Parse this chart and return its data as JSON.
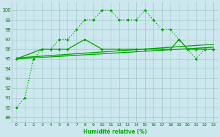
{
  "xlabel": "Humidité relative (%)",
  "background_color": "#cce8ee",
  "grid_color": "#aacccc",
  "line_color": "#00aa00",
  "xlim": [
    -0.5,
    23.5
  ],
  "ylim": [
    88.5,
    100.8
  ],
  "yticks": [
    89,
    90,
    91,
    92,
    93,
    94,
    95,
    96,
    97,
    98,
    99,
    100
  ],
  "xticks": [
    0,
    1,
    2,
    3,
    4,
    5,
    6,
    7,
    8,
    9,
    10,
    11,
    12,
    13,
    14,
    15,
    16,
    17,
    18,
    19,
    20,
    21,
    22,
    23
  ],
  "series": [
    {
      "x": [
        0,
        1,
        2,
        3,
        4,
        5,
        6,
        7,
        8,
        9,
        10,
        11,
        12,
        13,
        14,
        15,
        16,
        17,
        18,
        19,
        20,
        21,
        22,
        23
      ],
      "y": [
        90,
        91,
        95,
        96,
        96,
        97,
        97,
        98,
        99,
        99,
        100,
        100,
        99,
        99,
        99,
        100,
        99,
        98,
        98,
        97,
        96,
        95,
        96,
        96
      ],
      "linestyle": "dotted",
      "marker": "D",
      "markersize": 2.0,
      "linewidth": 1.0
    },
    {
      "x": [
        0,
        23
      ],
      "y": [
        95.0,
        96.2
      ],
      "linestyle": "solid",
      "marker": null,
      "markersize": 0,
      "linewidth": 1.0
    },
    {
      "x": [
        0,
        23
      ],
      "y": [
        95.1,
        96.5
      ],
      "linestyle": "solid",
      "marker": null,
      "markersize": 0,
      "linewidth": 1.0
    },
    {
      "x": [
        0,
        3,
        5,
        6,
        8,
        10,
        12,
        14,
        15,
        17,
        18,
        19,
        20,
        21,
        22,
        23
      ],
      "y": [
        95,
        96,
        96,
        96,
        97,
        96,
        96,
        96,
        96,
        96,
        96,
        97,
        96,
        96,
        96,
        96
      ],
      "linestyle": "solid",
      "marker": "D",
      "markersize": 2.0,
      "linewidth": 1.0
    }
  ]
}
